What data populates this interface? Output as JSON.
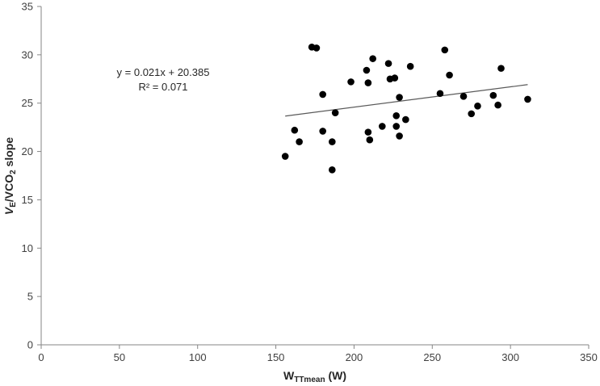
{
  "chart_data": {
    "type": "scatter",
    "xlabel": "WTTmean (W)",
    "xlabel_main": "W",
    "xlabel_sub": "TTmean",
    "xlabel_tail": " (W)",
    "ylabel": "VE/VCO2 slope",
    "ylabel_v1": "V",
    "ylabel_sub1": "E",
    "ylabel_mid": "/VCO",
    "ylabel_sub2": "2",
    "ylabel_tail": " slope",
    "xlim": [
      0,
      350
    ],
    "ylim": [
      0,
      35
    ],
    "xticks": [
      0,
      50,
      100,
      150,
      200,
      250,
      300,
      350
    ],
    "yticks": [
      0,
      5,
      10,
      15,
      20,
      25,
      30,
      35
    ],
    "grid": false,
    "trendline": {
      "slope": 0.021,
      "intercept": 20.385,
      "x_range": [
        156,
        311
      ],
      "equation": "y = 0.021x + 20.385",
      "r2": "R² = 0.071"
    },
    "points": [
      {
        "x": 156,
        "y": 19.5
      },
      {
        "x": 162,
        "y": 22.2
      },
      {
        "x": 165,
        "y": 21.0
      },
      {
        "x": 173,
        "y": 30.8
      },
      {
        "x": 176,
        "y": 30.7
      },
      {
        "x": 180,
        "y": 25.9
      },
      {
        "x": 180,
        "y": 22.1
      },
      {
        "x": 186,
        "y": 21.0
      },
      {
        "x": 186,
        "y": 18.1
      },
      {
        "x": 188,
        "y": 24.0
      },
      {
        "x": 198,
        "y": 27.2
      },
      {
        "x": 208,
        "y": 28.4
      },
      {
        "x": 209,
        "y": 27.1
      },
      {
        "x": 209,
        "y": 22.0
      },
      {
        "x": 210,
        "y": 21.2
      },
      {
        "x": 212,
        "y": 29.6
      },
      {
        "x": 218,
        "y": 22.6
      },
      {
        "x": 222,
        "y": 29.1
      },
      {
        "x": 223,
        "y": 27.5
      },
      {
        "x": 226,
        "y": 27.6
      },
      {
        "x": 227,
        "y": 23.7
      },
      {
        "x": 227,
        "y": 22.6
      },
      {
        "x": 229,
        "y": 25.6
      },
      {
        "x": 229,
        "y": 21.6
      },
      {
        "x": 233,
        "y": 23.3
      },
      {
        "x": 236,
        "y": 28.8
      },
      {
        "x": 255,
        "y": 26.0
      },
      {
        "x": 258,
        "y": 30.5
      },
      {
        "x": 261,
        "y": 27.9
      },
      {
        "x": 270,
        "y": 25.7
      },
      {
        "x": 275,
        "y": 23.9
      },
      {
        "x": 279,
        "y": 24.7
      },
      {
        "x": 289,
        "y": 25.8
      },
      {
        "x": 292,
        "y": 24.8
      },
      {
        "x": 294,
        "y": 28.6
      },
      {
        "x": 311,
        "y": 25.4
      }
    ],
    "colors": {
      "marker": "#000000",
      "trendline": "#595959",
      "axis": "#868686"
    }
  }
}
